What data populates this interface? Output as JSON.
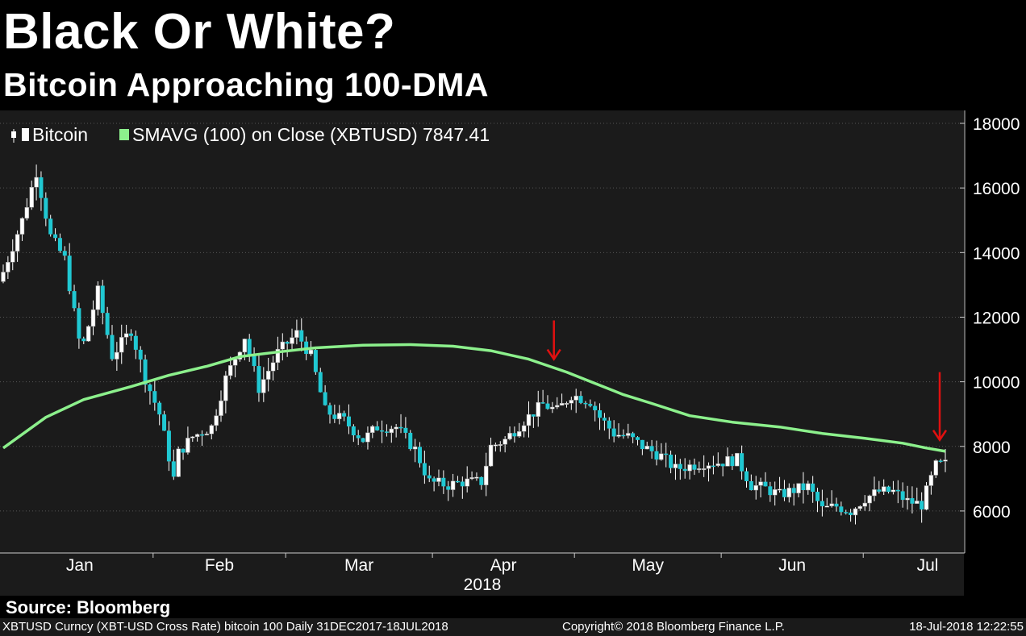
{
  "header": {
    "title": "Black Or White?",
    "subtitle": "Bitcoin Approaching 100-DMA"
  },
  "footer": {
    "source": "Source: Bloomberg",
    "ticker_info": "XBTUSD Curncy (XBT-USD Cross Rate) bitcoin 100  Daily 31DEC2017-18JUL2018",
    "copyright": "Copyright© 2018 Bloomberg Finance L.P.",
    "timestamp": "18-Jul-2018 12:22:55"
  },
  "colors": {
    "background": "#000000",
    "plot_background": "#1b1b1b",
    "up_candle": "#ffffff",
    "down_candle": "#20c8d2",
    "sma_line": "#8cf08c",
    "arrow": "#e01010",
    "grid": "#555555"
  },
  "chart_data": {
    "type": "line",
    "title": "Black Or White?",
    "subtitle": "Bitcoin Approaching 100-DMA",
    "legend": [
      {
        "label": "Bitcoin",
        "marker": "candlestick",
        "color": "#ffffff"
      },
      {
        "label": "SMAVG (100) on Close (XBTUSD) 7847.41",
        "marker": "line",
        "color": "#8cf08c"
      }
    ],
    "legend_position": "top-left",
    "grid": true,
    "y_axis": {
      "ticks": [
        6000,
        8000,
        10000,
        12000,
        14000,
        16000,
        18000
      ],
      "ylim": [
        4700,
        18400
      ],
      "side": "right"
    },
    "x_axis": {
      "months": [
        "Jan",
        "Feb",
        "Mar",
        "Apr",
        "May",
        "Jun",
        "Jul"
      ],
      "year_label": "2018"
    },
    "date_range": [
      "2017-12-31",
      "2018-07-18"
    ],
    "series": [
      {
        "name": "Bitcoin",
        "kind": "candlestick",
        "anchor_dates": [
          "2017-12-31",
          "2018-01-04",
          "2018-01-07",
          "2018-01-10",
          "2018-01-13",
          "2018-01-16",
          "2018-01-17",
          "2018-01-20",
          "2018-01-23",
          "2018-01-27",
          "2018-01-30",
          "2018-02-02",
          "2018-02-05",
          "2018-02-06",
          "2018-02-09",
          "2018-02-13",
          "2018-02-16",
          "2018-02-20",
          "2018-02-23",
          "2018-02-27",
          "2018-03-03",
          "2018-03-06",
          "2018-03-09",
          "2018-03-13",
          "2018-03-17",
          "2018-03-20",
          "2018-03-24",
          "2018-03-28",
          "2018-03-31",
          "2018-04-04",
          "2018-04-07",
          "2018-04-11",
          "2018-04-13",
          "2018-04-16",
          "2018-04-20",
          "2018-04-24",
          "2018-04-27",
          "2018-04-30",
          "2018-05-04",
          "2018-05-06",
          "2018-05-09",
          "2018-05-12",
          "2018-05-15",
          "2018-05-19",
          "2018-05-22",
          "2018-05-25",
          "2018-05-28",
          "2018-05-31",
          "2018-06-04",
          "2018-06-07",
          "2018-06-10",
          "2018-06-13",
          "2018-06-16",
          "2018-06-19",
          "2018-06-22",
          "2018-06-25",
          "2018-06-28",
          "2018-07-01",
          "2018-07-04",
          "2018-07-07",
          "2018-07-10",
          "2018-07-13",
          "2018-07-16",
          "2018-07-18"
        ],
        "anchor_closes": [
          13400,
          15000,
          16500,
          14500,
          13800,
          11300,
          11200,
          12800,
          10800,
          11600,
          10100,
          9000,
          7000,
          7800,
          8300,
          8600,
          10100,
          11400,
          9800,
          10900,
          11500,
          10800,
          9100,
          8800,
          8200,
          8600,
          8600,
          7900,
          6900,
          6800,
          6900,
          6900,
          8000,
          8200,
          8800,
          9300,
          9100,
          9600,
          9400,
          8900,
          8400,
          8300,
          8000,
          7700,
          7300,
          7400,
          7500,
          7500,
          7600,
          6800,
          6700,
          6500,
          6650,
          6750,
          6050,
          6150,
          6000,
          6400,
          6600,
          6600,
          6300,
          6200,
          7400,
          7450
        ]
      },
      {
        "name": "SMAVG (100) on Close (XBTUSD)",
        "kind": "line",
        "last_value": 7847.41,
        "dates": [
          "2017-12-31",
          "2018-01-09",
          "2018-01-17",
          "2018-01-27",
          "2018-02-04",
          "2018-02-12",
          "2018-02-19",
          "2018-02-27",
          "2018-03-07",
          "2018-03-17",
          "2018-03-27",
          "2018-04-05",
          "2018-04-13",
          "2018-04-21",
          "2018-04-29",
          "2018-05-05",
          "2018-05-11",
          "2018-05-17",
          "2018-05-25",
          "2018-06-03",
          "2018-06-13",
          "2018-06-22",
          "2018-07-01",
          "2018-07-09",
          "2018-07-14",
          "2018-07-18"
        ],
        "values": [
          7950,
          8900,
          9450,
          9850,
          10200,
          10480,
          10780,
          10920,
          11050,
          11130,
          11150,
          11100,
          10960,
          10700,
          10300,
          9950,
          9600,
          9330,
          8950,
          8750,
          8600,
          8400,
          8250,
          8100,
          7950,
          7847
        ]
      }
    ],
    "annotations": [
      {
        "type": "arrow",
        "direction": "down",
        "date": "2018-04-27",
        "from_value": 11900,
        "to_value": 10700
      },
      {
        "type": "arrow",
        "direction": "down",
        "date": "2018-07-18",
        "from_value": 10300,
        "to_value": 8200
      }
    ]
  }
}
